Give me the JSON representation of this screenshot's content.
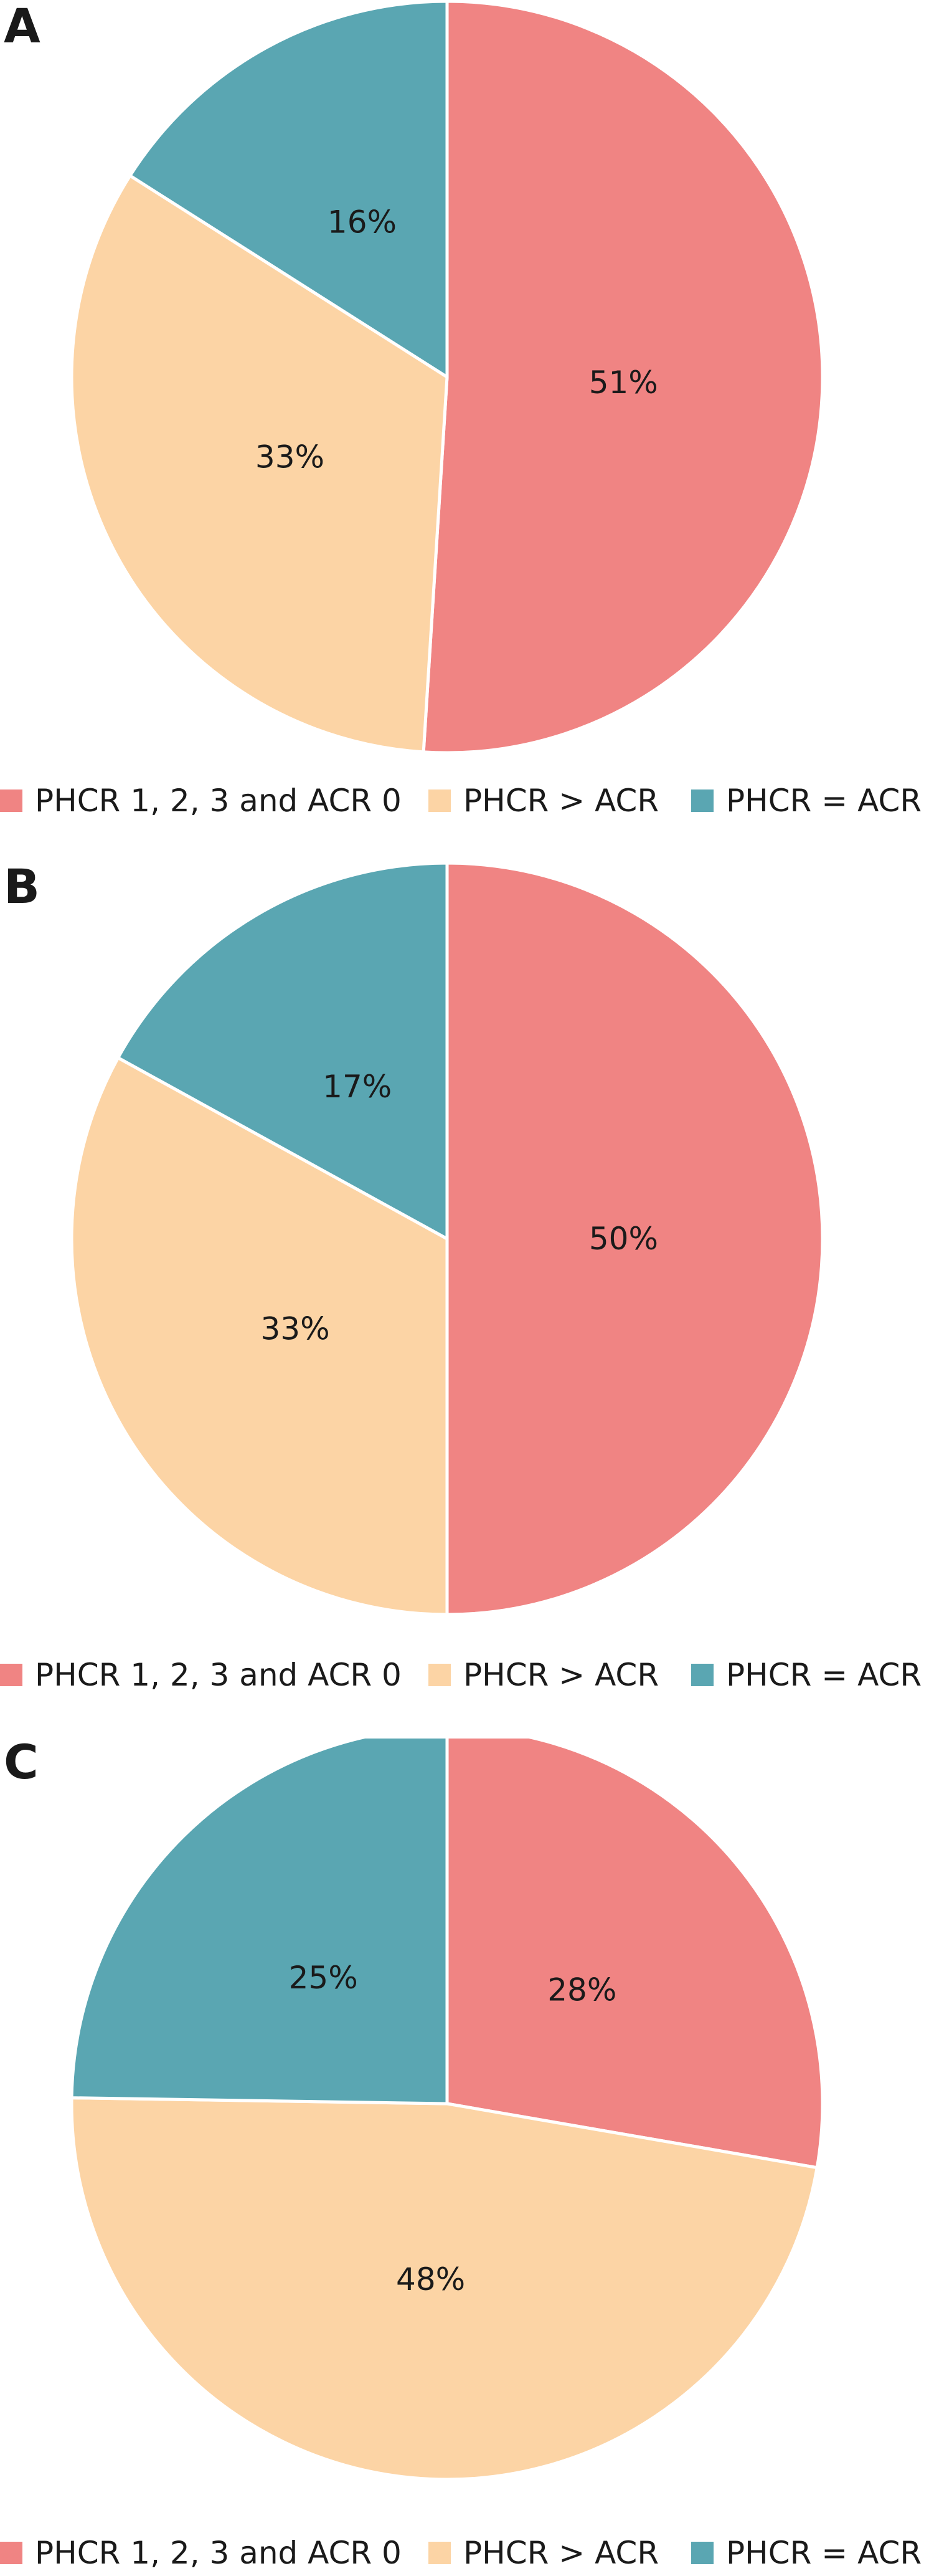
{
  "colors": {
    "phcr_acr0": "#F08483",
    "phcr_gt_acr": "#FCD4A5",
    "phcr_eq_acr": "#5AA6B2"
  },
  "legend": {
    "items": [
      {
        "label": "PHCR 1, 2, 3 and ACR 0",
        "color": "#F08483"
      },
      {
        "label": "PHCR > ACR",
        "color": "#FCD4A5"
      },
      {
        "label": "PHCR = ACR",
        "color": "#5AA6B2"
      }
    ]
  },
  "chart_data": [
    {
      "type": "pie",
      "panel": "A",
      "categories": [
        "PHCR 1, 2, 3 and ACR 0",
        "PHCR > ACR",
        "PHCR = ACR"
      ],
      "values": [
        51,
        33,
        16
      ],
      "labels": [
        "51%",
        "33%",
        "16%"
      ],
      "colors": [
        "#F08483",
        "#FCD4A5",
        "#5AA6B2"
      ],
      "legend": "bottom"
    },
    {
      "type": "pie",
      "panel": "B",
      "categories": [
        "PHCR 1, 2, 3 and ACR 0",
        "PHCR > ACR",
        "PHCR = ACR"
      ],
      "values": [
        50,
        33,
        17
      ],
      "labels": [
        "50%",
        "33%",
        "17%"
      ],
      "colors": [
        "#F08483",
        "#FCD4A5",
        "#5AA6B2"
      ],
      "legend": "bottom"
    },
    {
      "type": "pie",
      "panel": "C",
      "categories": [
        "PHCR 1, 2, 3 and ACR 0",
        "PHCR > ACR",
        "PHCR = ACR"
      ],
      "values": [
        28,
        48,
        25
      ],
      "labels": [
        "28%",
        "48%",
        "25%"
      ],
      "colors": [
        "#F08483",
        "#FCD4A5",
        "#5AA6B2"
      ],
      "legend": "bottom"
    }
  ]
}
